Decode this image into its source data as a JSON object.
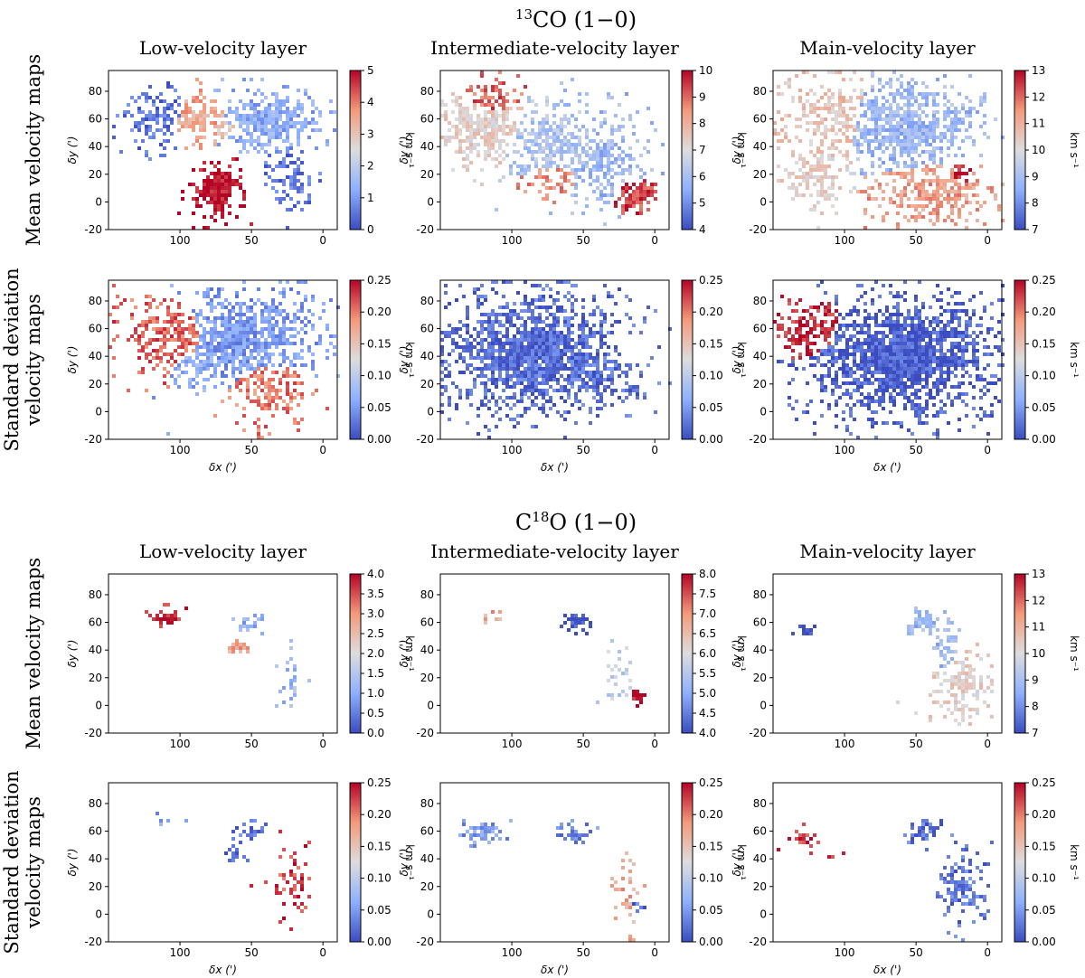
{
  "figure": {
    "sections": [
      {
        "molecule": "CO (1−0)",
        "superscript": "13",
        "prefix": "",
        "column_titles": [
          "Low-velocity layer",
          "Intermediate-velocity layer",
          "Main-velocity layer"
        ],
        "row_labels": [
          {
            "line1": "Mean velocity maps",
            "line2": ""
          },
          {
            "line1": "Standard deviation",
            "line2": "velocity maps"
          }
        ]
      },
      {
        "molecule": "O (1−0)",
        "superscript": "18",
        "prefix": "C",
        "column_titles": [
          "Low-velocity layer",
          "Intermediate-velocity layer",
          "Main-velocity layer"
        ],
        "row_labels": [
          {
            "line1": "Mean velocity maps",
            "line2": ""
          },
          {
            "line1": "Standard deviation",
            "line2": "velocity maps"
          }
        ]
      }
    ],
    "axes": {
      "xlabel": "δx (')",
      "ylabel": "δy (')",
      "colorbar_label": "km s⁻¹"
    }
  },
  "chart_data": [
    {
      "id": "13co-mean-low",
      "type": "heatmap",
      "title": "Low-velocity layer",
      "xlim": [
        150,
        -10
      ],
      "ylim": [
        -20,
        95
      ],
      "xticks": [
        100,
        50,
        0
      ],
      "yticks": [
        -20,
        0,
        20,
        40,
        60,
        80
      ],
      "colorbar_range": [
        0,
        5
      ],
      "colorbar_ticks": [
        "0",
        "1",
        "2",
        "3",
        "4",
        "5"
      ]
    },
    {
      "id": "13co-mean-int",
      "type": "heatmap",
      "title": "Intermediate-velocity layer",
      "xlim": [
        150,
        -10
      ],
      "ylim": [
        -20,
        95
      ],
      "xticks": [
        100,
        50,
        0
      ],
      "yticks": [
        -20,
        0,
        20,
        40,
        60,
        80
      ],
      "colorbar_range": [
        4,
        10
      ],
      "colorbar_ticks": [
        "4",
        "5",
        "6",
        "7",
        "8",
        "9",
        "10"
      ]
    },
    {
      "id": "13co-mean-main",
      "type": "heatmap",
      "title": "Main-velocity layer",
      "xlim": [
        150,
        -10
      ],
      "ylim": [
        -20,
        95
      ],
      "xticks": [
        100,
        50,
        0
      ],
      "yticks": [
        -20,
        0,
        20,
        40,
        60,
        80
      ],
      "colorbar_range": [
        7,
        13
      ],
      "colorbar_ticks": [
        "7",
        "8",
        "9",
        "10",
        "11",
        "12",
        "13"
      ]
    },
    {
      "id": "13co-std-low",
      "type": "heatmap",
      "title": "Low-velocity layer",
      "xlim": [
        150,
        -10
      ],
      "ylim": [
        -20,
        95
      ],
      "xticks": [
        100,
        50,
        0
      ],
      "yticks": [
        -20,
        0,
        20,
        40,
        60,
        80
      ],
      "colorbar_range": [
        0,
        0.25
      ],
      "colorbar_ticks": [
        "0.00",
        "0.05",
        "0.10",
        "0.15",
        "0.20",
        "0.25"
      ]
    },
    {
      "id": "13co-std-int",
      "type": "heatmap",
      "title": "Intermediate-velocity layer",
      "xlim": [
        150,
        -10
      ],
      "ylim": [
        -20,
        95
      ],
      "xticks": [
        100,
        50,
        0
      ],
      "yticks": [
        -20,
        0,
        20,
        40,
        60,
        80
      ],
      "colorbar_range": [
        0,
        0.25
      ],
      "colorbar_ticks": [
        "0.00",
        "0.05",
        "0.10",
        "0.15",
        "0.20",
        "0.25"
      ]
    },
    {
      "id": "13co-std-main",
      "type": "heatmap",
      "title": "Main-velocity layer",
      "xlim": [
        150,
        -10
      ],
      "ylim": [
        -20,
        95
      ],
      "xticks": [
        100,
        50,
        0
      ],
      "yticks": [
        -20,
        0,
        20,
        40,
        60,
        80
      ],
      "colorbar_range": [
        0,
        0.25
      ],
      "colorbar_ticks": [
        "0.00",
        "0.05",
        "0.10",
        "0.15",
        "0.20",
        "0.25"
      ]
    },
    {
      "id": "c18o-mean-low",
      "type": "heatmap",
      "title": "Low-velocity layer",
      "xlim": [
        150,
        -10
      ],
      "ylim": [
        -20,
        95
      ],
      "xticks": [
        100,
        50,
        0
      ],
      "yticks": [
        -20,
        0,
        20,
        40,
        60,
        80
      ],
      "colorbar_range": [
        0,
        4
      ],
      "colorbar_ticks": [
        "0.0",
        "0.5",
        "1.0",
        "1.5",
        "2.0",
        "2.5",
        "3.0",
        "3.5",
        "4.0"
      ]
    },
    {
      "id": "c18o-mean-int",
      "type": "heatmap",
      "title": "Intermediate-velocity layer",
      "xlim": [
        150,
        -10
      ],
      "ylim": [
        -20,
        95
      ],
      "xticks": [
        100,
        50,
        0
      ],
      "yticks": [
        -20,
        0,
        20,
        40,
        60,
        80
      ],
      "colorbar_range": [
        4,
        8
      ],
      "colorbar_ticks": [
        "4.0",
        "4.5",
        "5.0",
        "5.5",
        "6.0",
        "6.5",
        "7.0",
        "7.5",
        "8.0"
      ]
    },
    {
      "id": "c18o-mean-main",
      "type": "heatmap",
      "title": "Main-velocity layer",
      "xlim": [
        150,
        -10
      ],
      "ylim": [
        -20,
        95
      ],
      "xticks": [
        100,
        50,
        0
      ],
      "yticks": [
        -20,
        0,
        20,
        40,
        60,
        80
      ],
      "colorbar_range": [
        7,
        13
      ],
      "colorbar_ticks": [
        "7",
        "8",
        "9",
        "10",
        "11",
        "12",
        "13"
      ]
    },
    {
      "id": "c18o-std-low",
      "type": "heatmap",
      "title": "Low-velocity layer",
      "xlim": [
        150,
        -10
      ],
      "ylim": [
        -20,
        95
      ],
      "xticks": [
        100,
        50,
        0
      ],
      "yticks": [
        -20,
        0,
        20,
        40,
        60,
        80
      ],
      "colorbar_range": [
        0,
        0.25
      ],
      "colorbar_ticks": [
        "0.00",
        "0.05",
        "0.10",
        "0.15",
        "0.20",
        "0.25"
      ]
    },
    {
      "id": "c18o-std-int",
      "type": "heatmap",
      "title": "Intermediate-velocity layer",
      "xlim": [
        150,
        -10
      ],
      "ylim": [
        -20,
        95
      ],
      "xticks": [
        100,
        50,
        0
      ],
      "yticks": [
        -20,
        0,
        20,
        40,
        60,
        80
      ],
      "colorbar_range": [
        0,
        0.25
      ],
      "colorbar_ticks": [
        "0.00",
        "0.05",
        "0.10",
        "0.15",
        "0.20",
        "0.25"
      ]
    },
    {
      "id": "c18o-std-main",
      "type": "heatmap",
      "title": "Main-velocity layer",
      "xlim": [
        150,
        -10
      ],
      "ylim": [
        -20,
        95
      ],
      "xticks": [
        100,
        50,
        0
      ],
      "yticks": [
        -20,
        0,
        20,
        40,
        60,
        80
      ],
      "colorbar_range": [
        0,
        0.25
      ],
      "colorbar_ticks": [
        "0.00",
        "0.05",
        "0.10",
        "0.15",
        "0.20",
        "0.25"
      ]
    }
  ],
  "colors": {
    "cmap_low": "#3b4cc0",
    "cmap_mid": "#dddddd",
    "cmap_high": "#b40426",
    "axis": "#000000",
    "background": "#ffffff"
  }
}
